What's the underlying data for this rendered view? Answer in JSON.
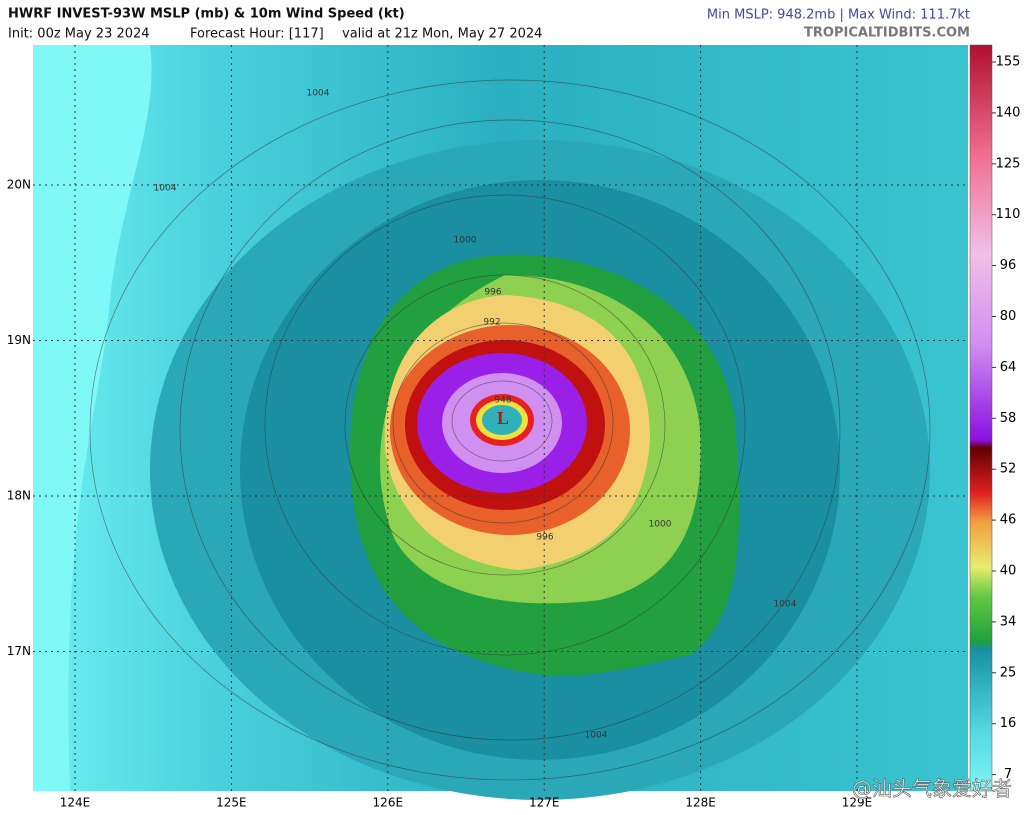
{
  "header": {
    "title": "HWRF INVEST-93W MSLP (mb) & 10m Wind Speed (kt)",
    "init": "Init: 00z May 23 2024",
    "forecast_hour": "Forecast Hour: [117]",
    "valid": "valid at 21z Mon, May 27 2024",
    "stats": "Min MSLP: 948.2mb | Max Wind: 111.7kt",
    "source": "TROPICALTIDBITS.COM"
  },
  "map": {
    "lat_labels": [
      "20N",
      "19N",
      "18N",
      "17N"
    ],
    "lon_labels": [
      "124E",
      "125E",
      "126E",
      "127E",
      "128E",
      "129E"
    ],
    "low_label": "L",
    "contour_labels": [
      "1004",
      "1004",
      "1000",
      "996",
      "992",
      "948",
      "996",
      "1000",
      "1004",
      "1004"
    ]
  },
  "colorbar": {
    "ticks": [
      "155",
      "140",
      "125",
      "110",
      "96",
      "80",
      "64",
      "58",
      "52",
      "46",
      "40",
      "34",
      "25",
      "16",
      "7"
    ]
  },
  "watermark": "@汕头气象爱好者"
}
